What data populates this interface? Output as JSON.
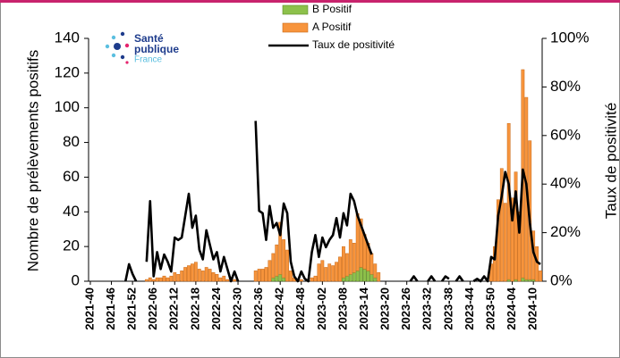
{
  "chart_data": {
    "type": "bar",
    "stacked": true,
    "logo": {
      "line1": "Santé",
      "line2": "publique",
      "line3": "France"
    },
    "y_label": "Nombre de prélèvements positifs",
    "y2_label": "Taux de positivité",
    "ylim": [
      0,
      140
    ],
    "yticks": [
      0,
      20,
      40,
      60,
      80,
      100,
      120,
      140
    ],
    "y2lim": [
      0,
      100
    ],
    "y2ticks": [
      {
        "value": 0,
        "label": "0%"
      },
      {
        "value": 20,
        "label": "20%"
      },
      {
        "value": 40,
        "label": "40%"
      },
      {
        "value": 60,
        "label": "60%"
      },
      {
        "value": 80,
        "label": "80%"
      },
      {
        "value": 100,
        "label": "100%"
      }
    ],
    "categories": [
      "2021-40",
      null,
      null,
      null,
      null,
      null,
      "2021-46",
      null,
      null,
      null,
      null,
      null,
      "2021-52",
      null,
      null,
      null,
      null,
      null,
      "2022-06",
      null,
      null,
      null,
      null,
      null,
      "2022-12",
      null,
      null,
      null,
      null,
      null,
      "2022-18",
      null,
      null,
      null,
      null,
      null,
      "2022-24",
      null,
      null,
      null,
      null,
      null,
      "2022-30",
      null,
      null,
      null,
      null,
      null,
      "2022-36",
      null,
      null,
      null,
      null,
      null,
      "2022-42",
      null,
      null,
      null,
      null,
      null,
      "2022-48",
      null,
      null,
      null,
      null,
      null,
      "2023-02",
      null,
      null,
      null,
      null,
      null,
      "2023-08",
      null,
      null,
      null,
      null,
      null,
      "2023-14",
      null,
      null,
      null,
      null,
      null,
      "2023-20",
      null,
      null,
      null,
      null,
      null,
      "2023-26",
      null,
      null,
      null,
      null,
      null,
      "2023-32",
      null,
      null,
      null,
      null,
      null,
      "2023-38",
      null,
      null,
      null,
      null,
      null,
      "2023-44",
      null,
      null,
      null,
      null,
      null,
      "2023-50",
      null,
      null,
      null,
      null,
      null,
      "2024-04",
      null,
      null,
      null,
      null,
      null,
      "2024-10",
      null,
      null
    ],
    "series": [
      {
        "name": "B Positif",
        "type": "bar",
        "color": "#8dc14b",
        "edge": "#5e8a2a",
        "values": [
          0,
          0,
          0,
          0,
          0,
          0,
          0,
          0,
          0,
          0,
          0,
          0,
          0,
          0,
          0,
          0,
          0,
          0,
          0,
          0,
          0,
          0,
          0,
          0,
          0,
          0,
          0,
          0,
          0,
          0,
          0,
          0,
          0,
          0,
          0,
          0,
          0,
          0,
          0,
          0,
          0,
          0,
          0,
          0,
          0,
          0,
          0,
          0,
          0,
          0,
          0,
          0,
          2,
          3,
          4,
          2,
          0,
          0,
          0,
          0,
          0,
          0,
          0,
          0,
          0,
          0,
          0,
          0,
          0,
          0,
          0,
          0,
          2,
          3,
          4,
          5,
          6,
          8,
          7,
          6,
          4,
          2,
          0,
          0,
          0,
          0,
          0,
          0,
          0,
          0,
          0,
          0,
          0,
          0,
          0,
          0,
          0,
          0,
          0,
          0,
          0,
          0,
          0,
          0,
          0,
          0,
          0,
          0,
          0,
          0,
          0,
          0,
          0,
          0,
          0,
          0,
          0,
          0,
          0,
          1,
          0,
          1,
          0,
          2,
          1,
          1,
          1,
          0,
          0
        ]
      },
      {
        "name": "A Positif",
        "type": "bar",
        "color": "#f7943c",
        "edge": "#c96a18",
        "values": [
          0,
          0,
          0,
          0,
          0,
          0,
          0,
          0,
          0,
          0,
          0,
          0,
          0,
          0,
          0,
          0,
          1,
          2,
          1,
          2,
          2,
          3,
          2,
          3,
          5,
          4,
          6,
          8,
          9,
          10,
          11,
          7,
          6,
          8,
          7,
          5,
          4,
          2,
          3,
          1,
          0,
          1,
          0,
          0,
          0,
          0,
          0,
          6,
          7,
          7,
          8,
          12,
          14,
          18,
          30,
          22,
          18,
          6,
          2,
          0,
          1,
          0,
          0,
          2,
          3,
          10,
          12,
          8,
          10,
          9,
          11,
          14,
          18,
          13,
          20,
          17,
          33,
          28,
          20,
          16,
          12,
          8,
          5,
          0,
          0,
          0,
          0,
          0,
          0,
          0,
          0,
          0,
          0,
          0,
          0,
          0,
          0,
          0,
          0,
          0,
          0,
          0,
          0,
          0,
          0,
          0,
          0,
          0,
          0,
          0,
          0,
          0,
          0,
          0,
          10,
          20,
          47,
          65,
          45,
          90,
          48,
          62,
          40,
          120,
          105,
          80,
          28,
          20,
          6
        ]
      },
      {
        "name": "Taux de positivité",
        "type": "line",
        "axis": "y2",
        "color": "#000000",
        "values": [
          null,
          null,
          null,
          null,
          null,
          null,
          null,
          null,
          null,
          null,
          0,
          7,
          3,
          0,
          null,
          null,
          8,
          33,
          2,
          12,
          5,
          11,
          8,
          4,
          18,
          17,
          18,
          27,
          36,
          22,
          27,
          13,
          9,
          21,
          15,
          9,
          12,
          4,
          10,
          5,
          0,
          4,
          0,
          null,
          null,
          null,
          null,
          66,
          29,
          28,
          17,
          31,
          22,
          24,
          19,
          32,
          28,
          8,
          2,
          0,
          4,
          1,
          0,
          12,
          19,
          10,
          18,
          14,
          17,
          19,
          26,
          18,
          28,
          23,
          36,
          33,
          27,
          23,
          19,
          15,
          11,
          null,
          null,
          null,
          null,
          null,
          null,
          null,
          null,
          null,
          null,
          0,
          2,
          0,
          null,
          null,
          0,
          2,
          0,
          null,
          0,
          2,
          1,
          null,
          0,
          2,
          0,
          null,
          null,
          0,
          1,
          0,
          2,
          0,
          10,
          9,
          27,
          35,
          45,
          40,
          25,
          37,
          20,
          46,
          40,
          24,
          12,
          8,
          7
        ]
      }
    ]
  }
}
